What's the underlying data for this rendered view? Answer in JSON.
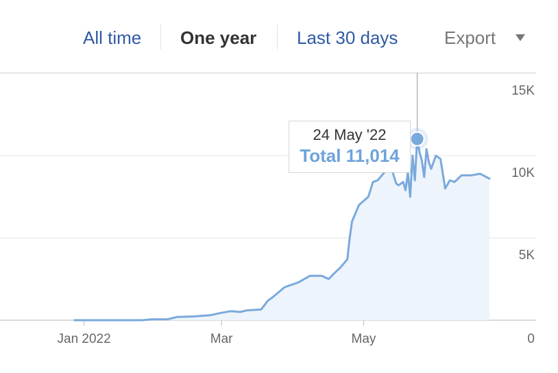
{
  "toolbar": {
    "tabs": [
      {
        "label": "All time",
        "active": false
      },
      {
        "label": "One year",
        "active": true
      },
      {
        "label": "Last 30 days",
        "active": false
      }
    ],
    "export_label": "Export"
  },
  "tooltip": {
    "date": "24 May '22",
    "total_label": "Total 11,014"
  },
  "colors": {
    "line": "#7aa9dc",
    "area": "#eef4fc",
    "link": "#2f5aa3",
    "tooltip_accent": "#6ea2db"
  },
  "chart_data": {
    "type": "area",
    "title": "",
    "xlabel": "",
    "ylabel": "",
    "x_ticks": [
      "Jan 2022",
      "Mar",
      "May"
    ],
    "y_ticks": [
      "15K",
      "10K",
      "5K",
      "0"
    ],
    "ylim": [
      0,
      15000
    ],
    "xlim": [
      "2021-12-18",
      "2022-06-30"
    ],
    "grid": true,
    "crosshair_date": "2022-05-24",
    "highlight": {
      "date": "2022-05-24",
      "value": 11014
    },
    "series": [
      {
        "points": [
          [
            "2021-12-28",
            0
          ],
          [
            "2022-01-05",
            0
          ],
          [
            "2022-01-12",
            0
          ],
          [
            "2022-01-19",
            0
          ],
          [
            "2022-01-26",
            0
          ],
          [
            "2022-01-30",
            50
          ],
          [
            "2022-02-06",
            60
          ],
          [
            "2022-02-10",
            200
          ],
          [
            "2022-02-17",
            230
          ],
          [
            "2022-02-24",
            300
          ],
          [
            "2022-03-01",
            450
          ],
          [
            "2022-03-05",
            550
          ],
          [
            "2022-03-09",
            500
          ],
          [
            "2022-03-12",
            600
          ],
          [
            "2022-03-18",
            650
          ],
          [
            "2022-03-21",
            1200
          ],
          [
            "2022-03-23",
            1400
          ],
          [
            "2022-03-28",
            2000
          ],
          [
            "2022-04-03",
            2300
          ],
          [
            "2022-04-08",
            2700
          ],
          [
            "2022-04-13",
            2700
          ],
          [
            "2022-04-16",
            2500
          ],
          [
            "2022-04-18",
            2800
          ],
          [
            "2022-04-21",
            3200
          ],
          [
            "2022-04-24",
            3700
          ],
          [
            "2022-04-25",
            5000
          ],
          [
            "2022-04-26",
            6000
          ],
          [
            "2022-04-29",
            7000
          ],
          [
            "2022-05-03",
            7500
          ],
          [
            "2022-05-05",
            8400
          ],
          [
            "2022-05-07",
            8500
          ],
          [
            "2022-05-10",
            9000
          ],
          [
            "2022-05-13",
            9200
          ],
          [
            "2022-05-15",
            8300
          ],
          [
            "2022-05-16",
            8200
          ],
          [
            "2022-05-18",
            8400
          ],
          [
            "2022-05-19",
            7900
          ],
          [
            "2022-05-20",
            9000
          ],
          [
            "2022-05-21",
            7500
          ],
          [
            "2022-05-22",
            10000
          ],
          [
            "2022-05-23",
            8500
          ],
          [
            "2022-05-24",
            11014
          ],
          [
            "2022-05-25",
            10200
          ],
          [
            "2022-05-26",
            9700
          ],
          [
            "2022-05-27",
            8700
          ],
          [
            "2022-05-28",
            10400
          ],
          [
            "2022-05-29",
            9600
          ],
          [
            "2022-05-30",
            9200
          ],
          [
            "2022-06-01",
            10000
          ],
          [
            "2022-06-03",
            9800
          ],
          [
            "2022-06-05",
            8000
          ],
          [
            "2022-06-07",
            8500
          ],
          [
            "2022-06-09",
            8400
          ],
          [
            "2022-06-12",
            8800
          ],
          [
            "2022-06-16",
            8800
          ],
          [
            "2022-06-20",
            8900
          ],
          [
            "2022-06-24",
            8600
          ]
        ]
      }
    ]
  }
}
